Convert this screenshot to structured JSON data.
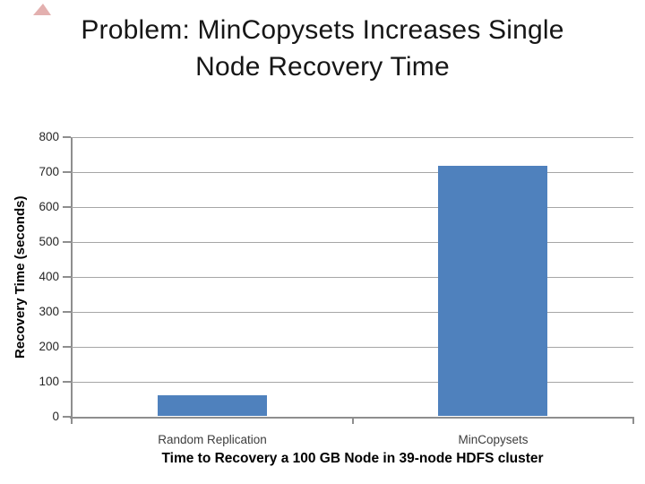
{
  "slide": {
    "title_line1": "Problem: MinCopysets Increases Single",
    "title_line2": "Node Recovery Time",
    "accent_triangle_color": "#c0504d"
  },
  "chart_data": {
    "type": "bar",
    "title": "Problem: MinCopysets Increases Single Node Recovery Time",
    "categories": [
      "Random Replication",
      "MinCopysets"
    ],
    "values": [
      58,
      715
    ],
    "xlabel": "Time to Recovery a 100 GB Node in 39-node HDFS cluster",
    "ylabel": "Recovery Time (seconds)",
    "ylim": [
      0,
      800
    ],
    "yticks": [
      0,
      100,
      200,
      300,
      400,
      500,
      600,
      700,
      800
    ],
    "grid": true,
    "legend": "none",
    "bar_color": "#4f81bd",
    "gridline_color": "#a6a6a6",
    "axis_color": "#8e8e8e",
    "tick_label_color": "#262626",
    "category_label_color": "#3d3d3d"
  }
}
